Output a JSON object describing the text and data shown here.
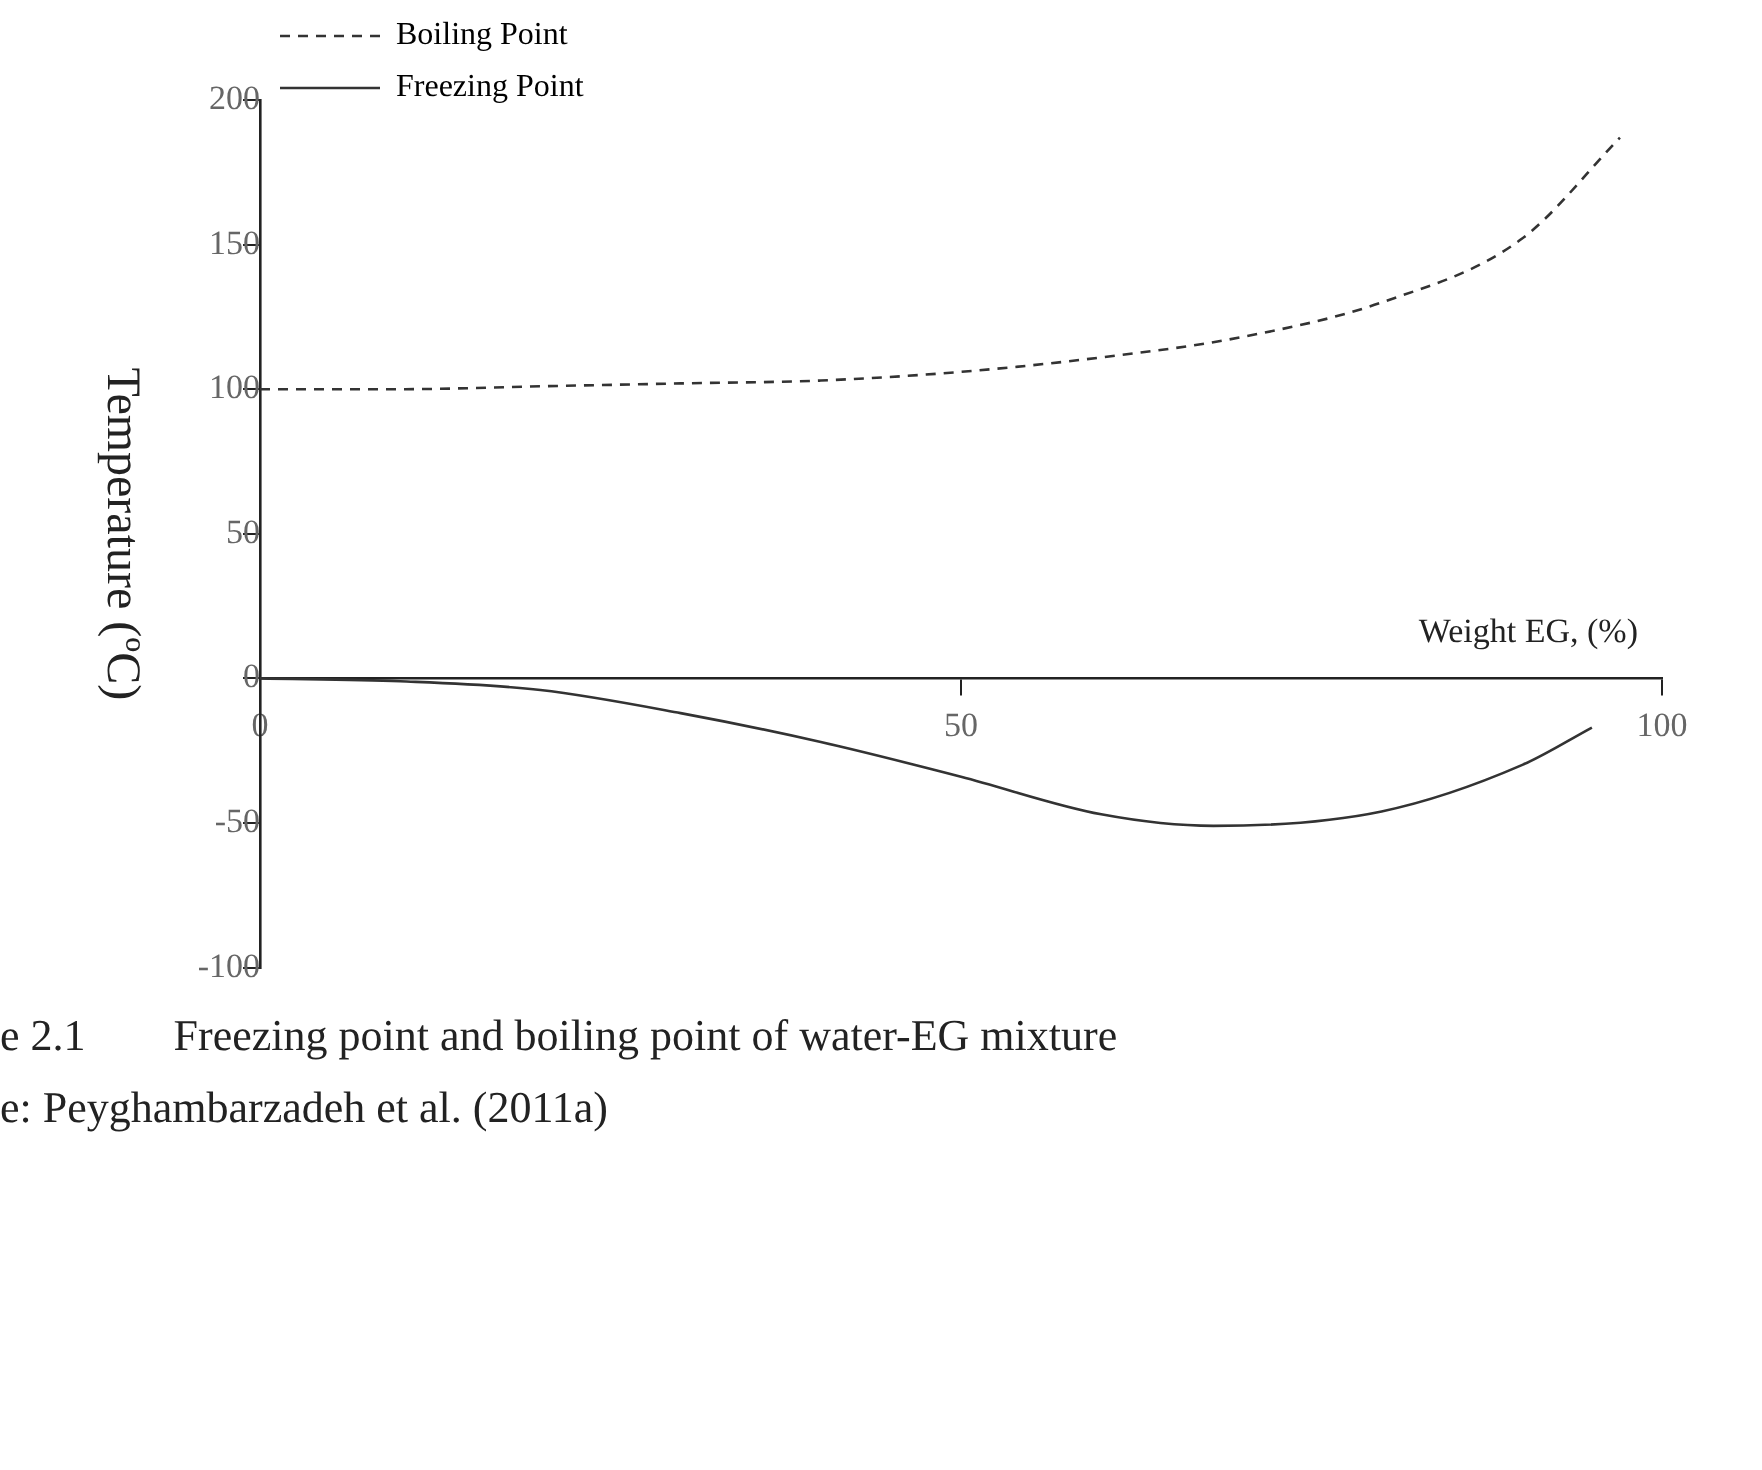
{
  "chart_data": {
    "type": "line",
    "ylabel": "Temperature (ºC)",
    "xlabel": "Weight EG, (%)",
    "xlim": [
      0,
      100
    ],
    "xticks": [
      0,
      50,
      100
    ],
    "ylim": [
      -100,
      200
    ],
    "yticks": [
      -100,
      -50,
      0,
      50,
      100,
      150,
      200
    ],
    "grid": false,
    "legend": "top left",
    "marker": "none",
    "series": [
      {
        "name": "Boiling Point",
        "color": "#333333",
        "line_style": "dashed",
        "x": [
          0,
          10,
          20,
          30,
          40,
          50,
          60,
          70,
          80,
          90,
          97
        ],
        "values": [
          100,
          100,
          101,
          102,
          103,
          106,
          111,
          118,
          130,
          152,
          187
        ]
      },
      {
        "name": "Freezing Point",
        "color": "#333333",
        "line_style": "solid",
        "x": [
          0,
          10,
          20,
          30,
          40,
          50,
          60,
          68,
          80,
          90,
          95
        ],
        "values": [
          0,
          -1,
          -4,
          -12,
          -22,
          -34,
          -47,
          -51,
          -46,
          -30,
          -17
        ]
      }
    ],
    "annotations": [
      "e 2.1        Freezing point and boiling point of water-EG mixture",
      "e: Peyghambarzadeh et al. (2011a)"
    ]
  }
}
